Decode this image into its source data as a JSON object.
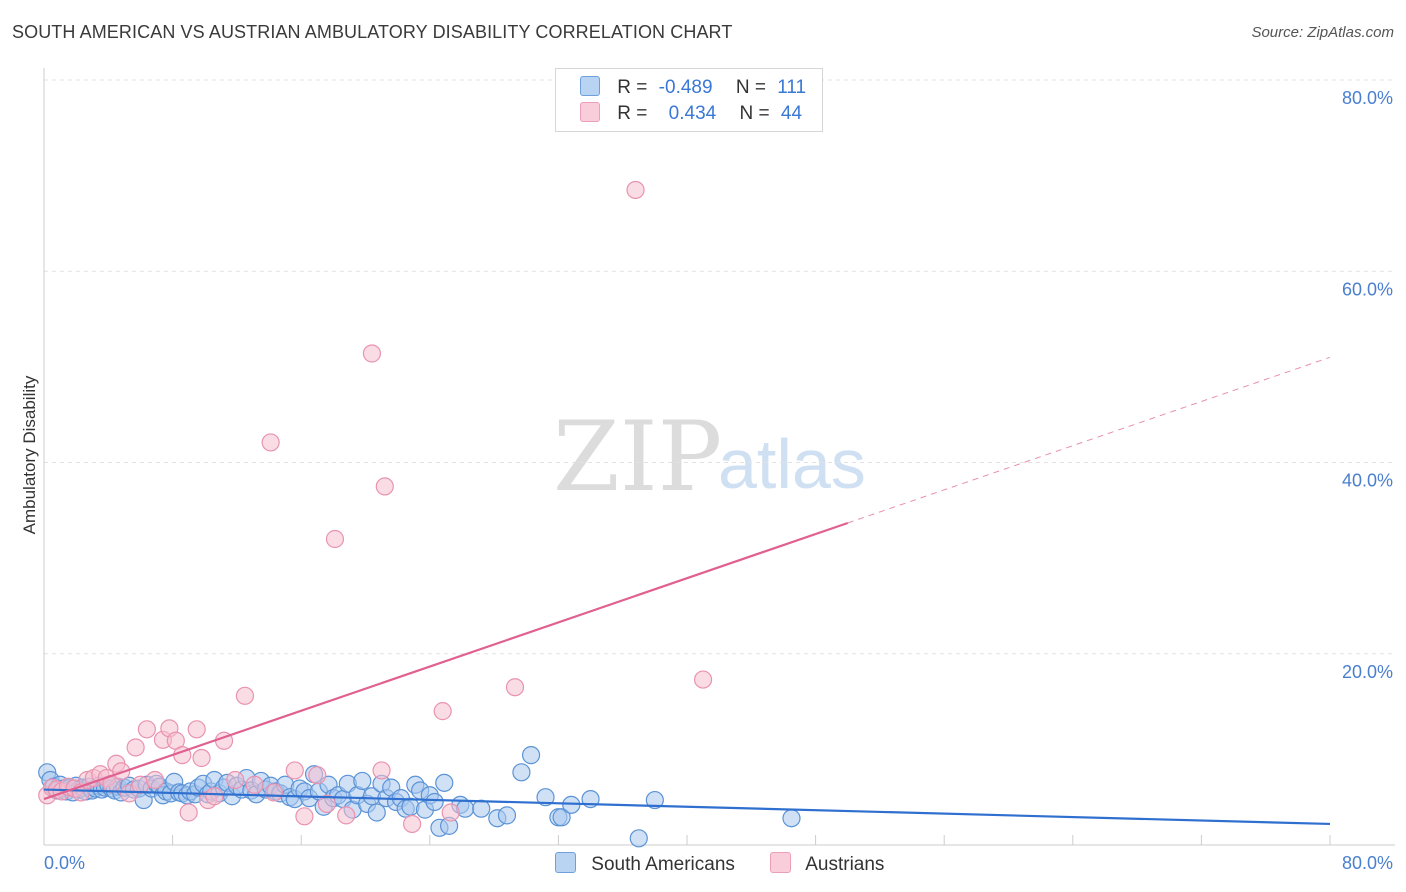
{
  "title": "SOUTH AMERICAN VS AUSTRIAN AMBULATORY DISABILITY CORRELATION CHART",
  "source": "Source: ZipAtlas.com",
  "watermark": {
    "zip": "ZIP",
    "atlas": "atlas"
  },
  "legend": {
    "r_label": "R =",
    "n_label": "N =",
    "series": [
      {
        "name": "South Americans",
        "r": "-0.489",
        "n": "111"
      },
      {
        "name": "Austrians",
        "r": "0.434",
        "n": "44"
      }
    ]
  },
  "colors": {
    "blue_fill": "#a9c8ee",
    "blue_stroke": "#5b93d6",
    "blue_line": "#2f6fcf",
    "pink_fill": "#f6bfd0",
    "pink_stroke": "#e993b0",
    "pink_line": "#e0608f",
    "tick_text": "#4a7fcf"
  },
  "chart_data": {
    "type": "scatter",
    "title": "SOUTH AMERICAN VS AUSTRIAN AMBULATORY DISABILITY CORRELATION CHART",
    "xlabel": "",
    "ylabel": "Ambulatory Disability",
    "xlim": [
      0,
      80
    ],
    "ylim": [
      0,
      82
    ],
    "x_tick_labels": [
      "0.0%",
      "80.0%"
    ],
    "y_ticks": [
      20,
      40,
      60,
      80
    ],
    "y_tick_labels": [
      "20.0%",
      "40.0%",
      "60.0%",
      "80.0%"
    ],
    "legend_position": "top-center",
    "series": [
      {
        "name": "South Americans",
        "r": -0.489,
        "n": 111,
        "trend": {
          "x0": 0,
          "y0": 5.8,
          "x1": 80,
          "y1": 2.2,
          "dashed_from": null
        },
        "points": [
          [
            0.2,
            7.6
          ],
          [
            0.4,
            6.8
          ],
          [
            0.6,
            6.1
          ],
          [
            0.8,
            5.7
          ],
          [
            1.0,
            6.3
          ],
          [
            1.2,
            5.9
          ],
          [
            1.4,
            5.6
          ],
          [
            1.6,
            6.0
          ],
          [
            1.8,
            5.5
          ],
          [
            2.0,
            6.2
          ],
          [
            2.2,
            5.8
          ],
          [
            2.4,
            6.0
          ],
          [
            2.6,
            5.6
          ],
          [
            2.8,
            6.1
          ],
          [
            3.0,
            5.7
          ],
          [
            3.2,
            5.9
          ],
          [
            3.4,
            6.2
          ],
          [
            3.6,
            5.8
          ],
          [
            3.8,
            6.0
          ],
          [
            4.0,
            6.3
          ],
          [
            4.2,
            5.9
          ],
          [
            4.4,
            5.7
          ],
          [
            4.6,
            6.1
          ],
          [
            4.8,
            5.5
          ],
          [
            5.0,
            6.0
          ],
          [
            5.3,
            6.2
          ],
          [
            5.6,
            5.8
          ],
          [
            5.9,
            5.9
          ],
          [
            6.2,
            4.7
          ],
          [
            6.4,
            6.3
          ],
          [
            6.7,
            5.9
          ],
          [
            7.0,
            6.4
          ],
          [
            7.2,
            6.1
          ],
          [
            7.4,
            5.2
          ],
          [
            7.6,
            5.6
          ],
          [
            7.9,
            5.4
          ],
          [
            8.1,
            6.6
          ],
          [
            8.4,
            5.5
          ],
          [
            8.6,
            5.4
          ],
          [
            8.9,
            5.2
          ],
          [
            9.1,
            5.6
          ],
          [
            9.4,
            5.3
          ],
          [
            9.6,
            6.0
          ],
          [
            9.9,
            6.4
          ],
          [
            10.2,
            5.3
          ],
          [
            10.4,
            5.6
          ],
          [
            10.6,
            6.8
          ],
          [
            10.9,
            5.4
          ],
          [
            11.2,
            6.0
          ],
          [
            11.4,
            6.5
          ],
          [
            11.7,
            5.1
          ],
          [
            12.0,
            6.2
          ],
          [
            12.3,
            5.8
          ],
          [
            12.6,
            7.0
          ],
          [
            12.9,
            5.7
          ],
          [
            13.2,
            5.3
          ],
          [
            13.5,
            6.7
          ],
          [
            13.8,
            5.8
          ],
          [
            14.1,
            6.2
          ],
          [
            14.4,
            5.6
          ],
          [
            14.7,
            5.4
          ],
          [
            15.0,
            6.3
          ],
          [
            15.3,
            5.0
          ],
          [
            15.6,
            4.8
          ],
          [
            15.9,
            5.9
          ],
          [
            16.2,
            5.6
          ],
          [
            16.5,
            4.9
          ],
          [
            16.8,
            7.4
          ],
          [
            17.1,
            5.6
          ],
          [
            17.4,
            4.0
          ],
          [
            17.7,
            6.3
          ],
          [
            18.0,
            4.9
          ],
          [
            18.3,
            5.2
          ],
          [
            18.6,
            4.8
          ],
          [
            18.9,
            6.4
          ],
          [
            19.2,
            3.7
          ],
          [
            19.5,
            5.2
          ],
          [
            19.8,
            6.7
          ],
          [
            20.1,
            4.3
          ],
          [
            20.4,
            5.1
          ],
          [
            20.7,
            3.4
          ],
          [
            21.0,
            6.4
          ],
          [
            21.3,
            4.9
          ],
          [
            21.6,
            6.0
          ],
          [
            21.9,
            4.5
          ],
          [
            22.2,
            4.9
          ],
          [
            22.5,
            3.8
          ],
          [
            22.8,
            4.0
          ],
          [
            23.1,
            6.3
          ],
          [
            23.4,
            5.7
          ],
          [
            23.7,
            3.7
          ],
          [
            24.0,
            5.2
          ],
          [
            24.3,
            4.5
          ],
          [
            24.6,
            1.8
          ],
          [
            24.9,
            6.5
          ],
          [
            25.2,
            2.0
          ],
          [
            25.9,
            4.2
          ],
          [
            26.2,
            3.8
          ],
          [
            27.2,
            3.8
          ],
          [
            28.2,
            2.8
          ],
          [
            28.8,
            3.1
          ],
          [
            29.7,
            7.6
          ],
          [
            30.3,
            9.4
          ],
          [
            31.2,
            5.0
          ],
          [
            32.0,
            2.9
          ],
          [
            32.2,
            2.9
          ],
          [
            32.8,
            4.2
          ],
          [
            34.0,
            4.8
          ],
          [
            37.0,
            0.7
          ],
          [
            38.0,
            4.7
          ],
          [
            46.5,
            2.8
          ]
        ]
      },
      {
        "name": "Austrians",
        "r": 0.434,
        "n": 44,
        "trend": {
          "x0": 0,
          "y0": 4.8,
          "x1": 80,
          "y1": 51.0,
          "dashed_from": 50
        },
        "points": [
          [
            0.2,
            5.2
          ],
          [
            0.5,
            6.0
          ],
          [
            0.8,
            5.8
          ],
          [
            1.1,
            5.6
          ],
          [
            1.5,
            6.1
          ],
          [
            1.9,
            5.9
          ],
          [
            2.3,
            5.5
          ],
          [
            2.7,
            6.8
          ],
          [
            3.1,
            7.0
          ],
          [
            3.5,
            7.4
          ],
          [
            3.9,
            7.0
          ],
          [
            4.2,
            6.4
          ],
          [
            4.5,
            8.5
          ],
          [
            4.8,
            7.7
          ],
          [
            5.3,
            5.4
          ],
          [
            5.7,
            10.2
          ],
          [
            6.0,
            6.3
          ],
          [
            6.4,
            12.1
          ],
          [
            6.9,
            6.8
          ],
          [
            7.4,
            11.0
          ],
          [
            7.8,
            12.2
          ],
          [
            8.2,
            10.9
          ],
          [
            8.6,
            9.4
          ],
          [
            9.0,
            3.4
          ],
          [
            9.5,
            12.1
          ],
          [
            9.8,
            9.1
          ],
          [
            10.2,
            4.7
          ],
          [
            10.6,
            5.1
          ],
          [
            11.2,
            10.9
          ],
          [
            11.9,
            6.8
          ],
          [
            12.5,
            15.6
          ],
          [
            13.1,
            6.3
          ],
          [
            14.3,
            5.5
          ],
          [
            15.6,
            7.8
          ],
          [
            16.2,
            3.0
          ],
          [
            17.0,
            7.3
          ],
          [
            17.6,
            4.3
          ],
          [
            18.1,
            32.0
          ],
          [
            18.8,
            3.1
          ],
          [
            20.4,
            51.4
          ],
          [
            21.0,
            7.8
          ],
          [
            22.9,
            2.2
          ],
          [
            24.8,
            14.0
          ],
          [
            25.3,
            3.4
          ]
        ],
        "outliers": [
          [
            14.1,
            42.1
          ],
          [
            21.2,
            37.5
          ],
          [
            29.3,
            16.5
          ],
          [
            36.8,
            68.5
          ],
          [
            41.0,
            17.3
          ]
        ]
      }
    ]
  }
}
